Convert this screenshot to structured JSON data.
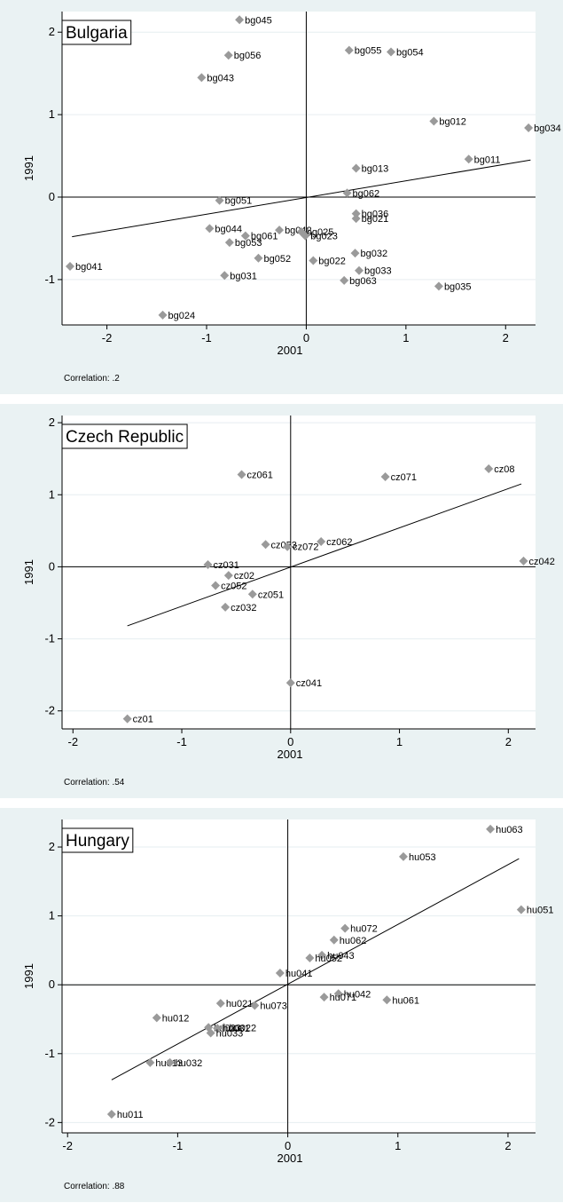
{
  "chart_data": [
    {
      "type": "scatter",
      "title": "Bulgaria",
      "xlabel": "2001",
      "ylabel": "1991",
      "xlim": [
        -2.45,
        2.3
      ],
      "ylim": [
        -1.55,
        2.25
      ],
      "xticks": [
        -2,
        -1,
        0,
        1,
        2
      ],
      "yticks": [
        -1,
        0,
        1,
        2
      ],
      "grid": true,
      "correlation_label": "Correlation: .2",
      "fit_line": {
        "x": [
          -2.35,
          2.25
        ],
        "y": [
          -0.48,
          0.45
        ]
      },
      "points": [
        {
          "label": "bg045",
          "x": -0.67,
          "y": 2.15
        },
        {
          "label": "bg056",
          "x": -0.78,
          "y": 1.72
        },
        {
          "label": "bg043",
          "x": -1.05,
          "y": 1.45
        },
        {
          "label": "bg055",
          "x": 0.43,
          "y": 1.78
        },
        {
          "label": "bg054",
          "x": 0.85,
          "y": 1.76
        },
        {
          "label": "bg012",
          "x": 1.28,
          "y": 0.92
        },
        {
          "label": "bg034",
          "x": 2.23,
          "y": 0.84
        },
        {
          "label": "bg011",
          "x": 1.63,
          "y": 0.46
        },
        {
          "label": "bg013",
          "x": 0.5,
          "y": 0.35
        },
        {
          "label": "bg062",
          "x": 0.41,
          "y": 0.05
        },
        {
          "label": "bg051",
          "x": -0.87,
          "y": -0.04
        },
        {
          "label": "bg036",
          "x": 0.5,
          "y": -0.2
        },
        {
          "label": "bg021",
          "x": 0.5,
          "y": -0.26
        },
        {
          "label": "bg044",
          "x": -0.97,
          "y": -0.38
        },
        {
          "label": "bg061",
          "x": -0.61,
          "y": -0.47
        },
        {
          "label": "bg053",
          "x": -0.77,
          "y": -0.55
        },
        {
          "label": "bg042",
          "x": -0.27,
          "y": -0.4
        },
        {
          "label": "bg025",
          "x": -0.05,
          "y": -0.42
        },
        {
          "label": "bg023",
          "x": -0.01,
          "y": -0.47
        },
        {
          "label": "bg052",
          "x": -0.48,
          "y": -0.74
        },
        {
          "label": "bg022",
          "x": 0.07,
          "y": -0.77
        },
        {
          "label": "bg032",
          "x": 0.49,
          "y": -0.68
        },
        {
          "label": "bg033",
          "x": 0.53,
          "y": -0.89
        },
        {
          "label": "bg031",
          "x": -0.82,
          "y": -0.95
        },
        {
          "label": "bg063",
          "x": 0.38,
          "y": -1.01
        },
        {
          "label": "bg035",
          "x": 1.33,
          "y": -1.08
        },
        {
          "label": "bg041",
          "x": -2.37,
          "y": -0.84
        },
        {
          "label": "bg024",
          "x": -1.44,
          "y": -1.43
        }
      ]
    },
    {
      "type": "scatter",
      "title": "Czech Republic",
      "xlabel": "2001",
      "ylabel": "1991",
      "xlim": [
        -2.1,
        2.25
      ],
      "ylim": [
        -2.25,
        2.1
      ],
      "xticks": [
        -2,
        -1,
        0,
        1,
        2
      ],
      "yticks": [
        -2,
        -1,
        0,
        1,
        2
      ],
      "grid": true,
      "correlation_label": "Correlation: .54",
      "fit_line": {
        "x": [
          -1.5,
          2.12
        ],
        "y": [
          -0.82,
          1.15
        ]
      },
      "points": [
        {
          "label": "cz061",
          "x": -0.45,
          "y": 1.28
        },
        {
          "label": "cz071",
          "x": 0.87,
          "y": 1.25
        },
        {
          "label": "cz08",
          "x": 1.82,
          "y": 1.36
        },
        {
          "label": "cz042",
          "x": 2.14,
          "y": 0.08
        },
        {
          "label": "cz053",
          "x": -0.23,
          "y": 0.31
        },
        {
          "label": "cz072",
          "x": -0.03,
          "y": 0.28
        },
        {
          "label": "cz062",
          "x": 0.28,
          "y": 0.35
        },
        {
          "label": "cz031",
          "x": -0.76,
          "y": 0.03
        },
        {
          "label": "cz02",
          "x": -0.57,
          "y": -0.12
        },
        {
          "label": "cz052",
          "x": -0.69,
          "y": -0.26
        },
        {
          "label": "cz051",
          "x": -0.35,
          "y": -0.38
        },
        {
          "label": "cz032",
          "x": -0.6,
          "y": -0.56
        },
        {
          "label": "cz041",
          "x": 0.0,
          "y": -1.61
        },
        {
          "label": "cz01",
          "x": -1.5,
          "y": -2.11
        }
      ]
    },
    {
      "type": "scatter",
      "title": "Hungary",
      "xlabel": "2001",
      "ylabel": "1991",
      "xlim": [
        -2.05,
        2.25
      ],
      "ylim": [
        -2.15,
        2.4
      ],
      "xticks": [
        -2,
        -1,
        0,
        1,
        2
      ],
      "yticks": [
        -2,
        -1,
        0,
        1,
        2
      ],
      "grid": true,
      "correlation_label": "Correlation: .88",
      "fit_line": {
        "x": [
          -1.6,
          2.1
        ],
        "y": [
          -1.38,
          1.83
        ]
      },
      "points": [
        {
          "label": "hu063",
          "x": 1.84,
          "y": 2.26
        },
        {
          "label": "hu053",
          "x": 1.05,
          "y": 1.86
        },
        {
          "label": "hu051",
          "x": 2.12,
          "y": 1.09
        },
        {
          "label": "hu072",
          "x": 0.52,
          "y": 0.82
        },
        {
          "label": "hu062",
          "x": 0.42,
          "y": 0.65
        },
        {
          "label": "hu043",
          "x": 0.31,
          "y": 0.43
        },
        {
          "label": "hu052",
          "x": 0.2,
          "y": 0.39
        },
        {
          "label": "hu041",
          "x": -0.07,
          "y": 0.17
        },
        {
          "label": "hu042",
          "x": 0.46,
          "y": -0.13
        },
        {
          "label": "hu071",
          "x": 0.33,
          "y": -0.18
        },
        {
          "label": "hu061",
          "x": 0.9,
          "y": -0.22
        },
        {
          "label": "hu021",
          "x": -0.61,
          "y": -0.27
        },
        {
          "label": "hu073",
          "x": -0.3,
          "y": -0.3
        },
        {
          "label": "hu012",
          "x": -1.19,
          "y": -0.48
        },
        {
          "label": "hu023",
          "x": -0.72,
          "y": -0.62
        },
        {
          "label": "hu022",
          "x": -0.58,
          "y": -0.62
        },
        {
          "label": "hu031",
          "x": -0.64,
          "y": -0.63
        },
        {
          "label": "hu033",
          "x": -0.7,
          "y": -0.7
        },
        {
          "label": "hu013",
          "x": -1.25,
          "y": -1.13
        },
        {
          "label": "hu032",
          "x": -1.07,
          "y": -1.13
        },
        {
          "label": "hu011",
          "x": -1.6,
          "y": -1.88
        }
      ]
    }
  ]
}
